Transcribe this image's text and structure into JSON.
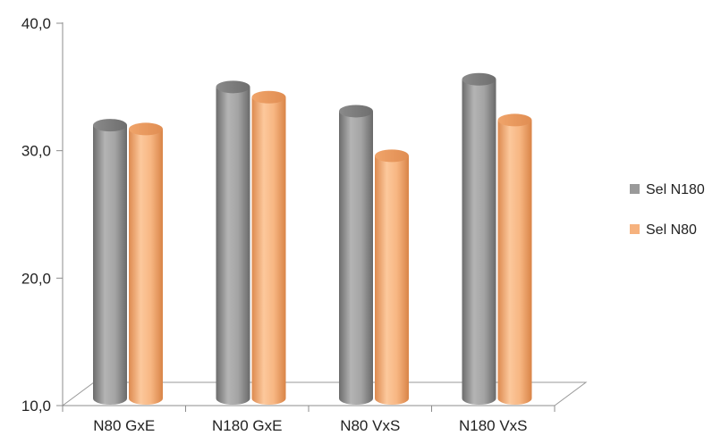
{
  "chart_data": {
    "type": "bar",
    "categories": [
      "N80 GxE",
      "N180 GxE",
      "N80 VxS",
      "N180 VxS"
    ],
    "series": [
      {
        "name": "Sel N180",
        "values": [
          32.0,
          35.0,
          33.1,
          35.6
        ],
        "color": "#9a9a9a"
      },
      {
        "name": "Sel N80",
        "values": [
          31.7,
          34.2,
          29.6,
          32.4
        ],
        "color": "#f6b27e"
      }
    ],
    "yticks": [
      "10,0",
      "20,0",
      "30,0",
      "40,0"
    ],
    "ylim": [
      10,
      40
    ],
    "legend_position": "right",
    "style": "3d-cylinder"
  }
}
